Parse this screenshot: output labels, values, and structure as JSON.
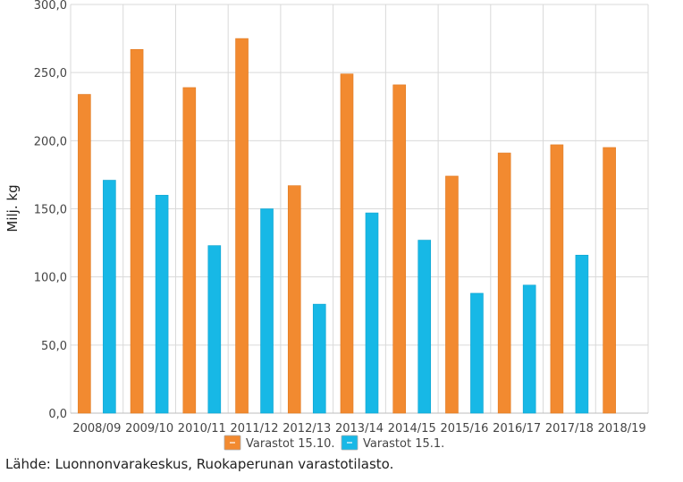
{
  "chart_data": {
    "type": "bar",
    "title": "",
    "xlabel": "",
    "ylabel": "Milj. kg",
    "ylim": [
      0,
      300
    ],
    "y_ticks": [
      "0,0",
      "50,0",
      "100,0",
      "150,0",
      "200,0",
      "250,0",
      "300,0"
    ],
    "grid": true,
    "legend_position": "bottom-center",
    "categories": [
      "2008/09",
      "2009/10",
      "2010/11",
      "2011/12",
      "2012/13",
      "2013/14",
      "2014/15",
      "2015/16",
      "2016/17",
      "2017/18",
      "2018/19"
    ],
    "series": [
      {
        "name": "Varastot 15.10.",
        "color": "#f28a30",
        "values": [
          234,
          267,
          239,
          275,
          167,
          249,
          241,
          174,
          191,
          197,
          195
        ]
      },
      {
        "name": "Varastot 15.1.",
        "color": "#17b8e6",
        "values": [
          171,
          160,
          123,
          150,
          80,
          147,
          127,
          88,
          94,
          116,
          null
        ]
      }
    ]
  },
  "source_text": "Lähde: Luonnonvarakeskus, Ruokaperunan varastotilasto."
}
